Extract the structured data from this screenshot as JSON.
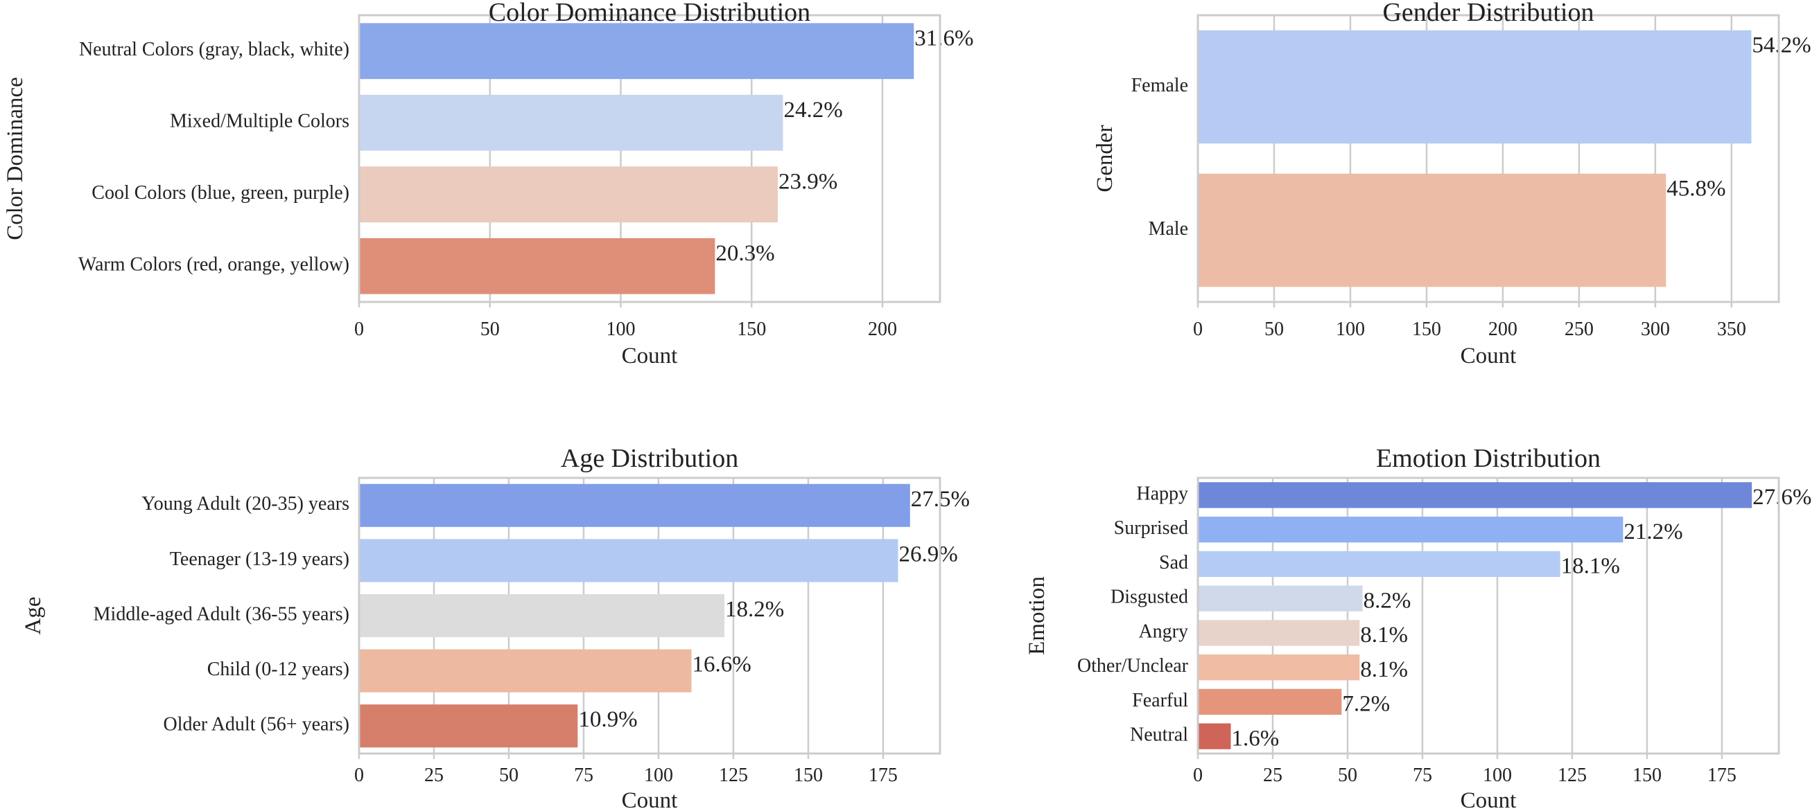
{
  "chart_data": [
    {
      "type": "bar",
      "orientation": "horizontal",
      "title": "Color Dominance Distribution",
      "xlabel": "Count",
      "ylabel": "Color Dominance",
      "categories": [
        "Neutral Colors (gray, black, white)",
        "Mixed/Multiple Colors",
        "Cool Colors (blue, green, purple)",
        "Warm Colors (red, orange, yellow)"
      ],
      "values": [
        212,
        162,
        160,
        136
      ],
      "labels": [
        "31.6%",
        "24.2%",
        "23.9%",
        "20.3%"
      ],
      "colors": [
        "#8aa8ea",
        "#c6d6f1",
        "#ebcbbe",
        "#df8e77"
      ],
      "xlim": [
        0,
        222
      ],
      "xticks": [
        0,
        50,
        100,
        150,
        200
      ],
      "grid": true
    },
    {
      "type": "bar",
      "orientation": "horizontal",
      "title": "Gender Distribution",
      "xlabel": "Count",
      "ylabel": "Gender",
      "categories": [
        "Female",
        "Male"
      ],
      "values": [
        363,
        307
      ],
      "labels": [
        "54.2%",
        "45.8%"
      ],
      "colors": [
        "#b5cbf4",
        "#edbca6"
      ],
      "xlim": [
        0,
        381
      ],
      "xticks": [
        0,
        50,
        100,
        150,
        200,
        250,
        300,
        350
      ],
      "grid": true
    },
    {
      "type": "bar",
      "orientation": "horizontal",
      "title": "Age Distribution",
      "xlabel": "Count",
      "ylabel": "Age",
      "categories": [
        "Young Adult (20-35) years",
        "Teenager (13-19 years)",
        "Middle-aged Adult (36-55 years)",
        "Child (0-12 years)",
        "Older Adult (56+ years)"
      ],
      "values": [
        184,
        180,
        122,
        111,
        73
      ],
      "labels": [
        "27.5%",
        "26.9%",
        "18.2%",
        "16.6%",
        "10.9%"
      ],
      "colors": [
        "#829ee9",
        "#b2c9f4",
        "#dcdcdc",
        "#edb9a0",
        "#d57f6a"
      ],
      "xlim": [
        0,
        194
      ],
      "xticks": [
        0,
        25,
        50,
        75,
        100,
        125,
        150,
        175
      ],
      "grid": true
    },
    {
      "type": "bar",
      "orientation": "horizontal",
      "title": "Emotion Distribution",
      "xlabel": "Count",
      "ylabel": "Emotion",
      "categories": [
        "Happy",
        "Surprised",
        "Sad",
        "Disgusted",
        "Angry",
        "Other/Unclear",
        "Fearful",
        "Neutral"
      ],
      "values": [
        185,
        142,
        121,
        55,
        54,
        54,
        48,
        11
      ],
      "labels": [
        "27.6%",
        "21.2%",
        "18.1%",
        "8.2%",
        "8.1%",
        "8.1%",
        "7.2%",
        "1.6%"
      ],
      "colors": [
        "#6e87d9",
        "#90b0f4",
        "#b3cbf5",
        "#cfd9ea",
        "#e8d3ca",
        "#f0bca3",
        "#e5957b",
        "#cf6558"
      ],
      "xlim": [
        0,
        194
      ],
      "xticks": [
        0,
        25,
        50,
        75,
        100,
        125,
        150,
        175
      ],
      "grid": true
    }
  ]
}
